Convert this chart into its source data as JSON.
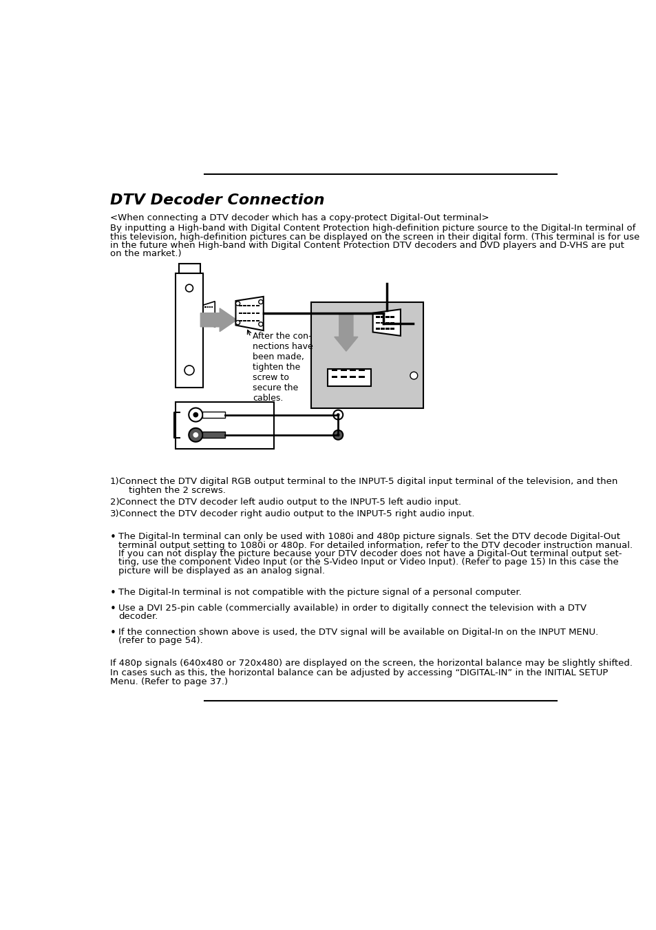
{
  "title": "DTV Decoder Connection",
  "subtitle": "<When connecting a DTV decoder which has a copy-protect Digital-Out terminal>",
  "intro_lines": [
    "By inputting a High-band with Digital Content Protection high-definition picture source to the Digital-In terminal of",
    "this television, high-definition pictures can be displayed on the screen in their digital form. (This terminal is for use",
    "in the future when High-band with Digital Content Protection DTV decoders and DVD players and D-VHS are put",
    "on the market.)"
  ],
  "callout_text": "After the con-\nnections have\nbeen made,\ntighten the\nscrew to\nsecure the\ncables.",
  "numbered_items": [
    [
      "Connect the DTV digital RGB output terminal to the INPUT-5 digital input terminal of the television, and then",
      "tighten the 2 screws."
    ],
    [
      "Connect the DTV decoder left audio output to the INPUT-5 left audio input."
    ],
    [
      "Connect the DTV decoder right audio output to the INPUT-5 right audio input."
    ]
  ],
  "bullet_data": [
    [
      "The Digital-In terminal can only be used with 1080i and 480p picture signals. Set the DTV decode Digital-Out",
      "terminal output setting to 1080i or 480p. For detailed information, refer to the DTV decoder instruction manual.",
      "If you can not display the picture because your DTV decoder does not have a Digital-Out terminal output set-",
      "ting, use the component Video Input (or the S-Video Input or Video Input). (Refer to page 15) In this case the",
      "picture will be displayed as an analog signal."
    ],
    [
      "The Digital-In terminal is not compatible with the picture signal of a personal computer."
    ],
    [
      "Use a DVI 25-pin cable (commercially available) in order to digitally connect the television with a DTV",
      "decoder."
    ],
    [
      "If the connection shown above is used, the DTV signal will be available on Digital-In on the INPUT MENU.",
      "(refer to page 54)."
    ]
  ],
  "footer_para1": "If 480p signals (640x480 or 720x480) are displayed on the screen, the horizontal balance may be slightly shifted.",
  "footer_para2": [
    "In cases such as this, the horizontal balance can be adjusted by accessing “DIGITAL-IN” in the INITIAL SETUP",
    "Menu. (Refer to page 37.)"
  ],
  "bg_color": "#ffffff",
  "text_color": "#000000",
  "line_color": "#000000",
  "gray_color": "#999999",
  "panel_gray": "#c8c8c8"
}
